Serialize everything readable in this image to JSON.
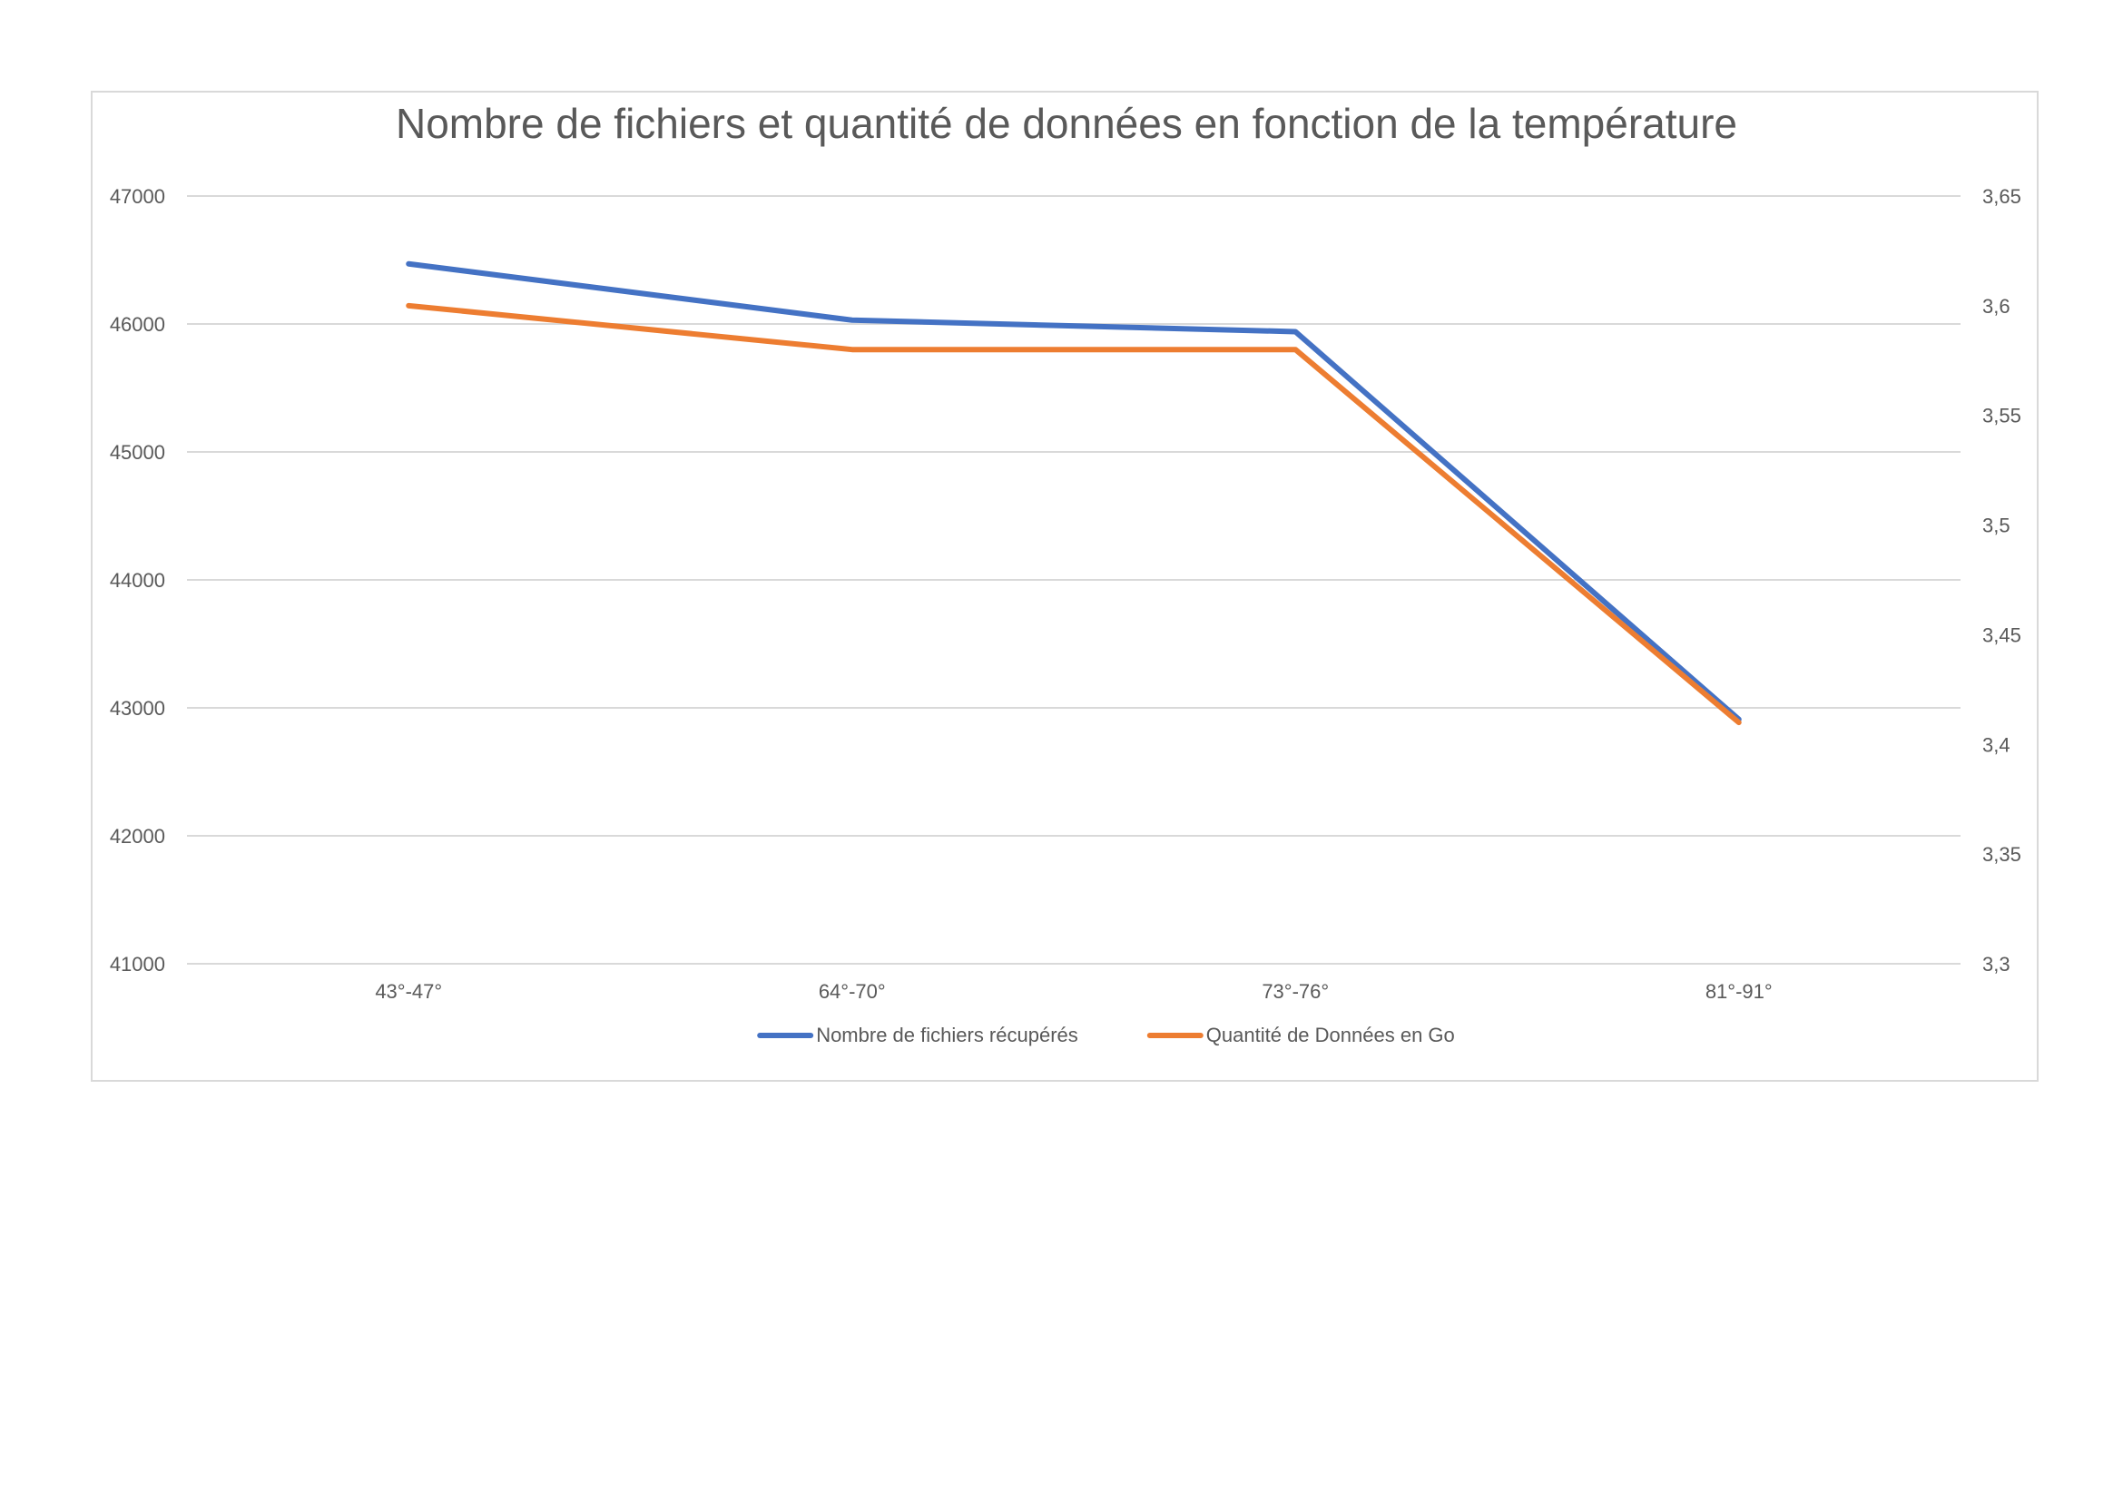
{
  "chart_data": {
    "type": "line",
    "title": "Nombre de fichiers et quantité de données en fonction de la température",
    "categories": [
      "43°-47°",
      "64°-70°",
      "73°-76°",
      "81°-91°"
    ],
    "y_left": {
      "min": 41000,
      "max": 47000,
      "step": 1000,
      "ticks": [
        "47000",
        "46000",
        "45000",
        "44000",
        "43000",
        "42000",
        "41000"
      ]
    },
    "y_right": {
      "min": 3.3,
      "max": 3.65,
      "step": 0.05,
      "ticks": [
        "3,65",
        "3,6",
        "3,55",
        "3,5",
        "3,45",
        "3,4",
        "3,35",
        "3,3"
      ]
    },
    "grid": true,
    "legend_position": "bottom",
    "series": [
      {
        "name": "Nombre de fichiers récupérés",
        "axis": "left",
        "color": "#4472C4",
        "values": [
          46470,
          46030,
          45940,
          42910
        ]
      },
      {
        "name": "Quantité de Données en Go",
        "axis": "right",
        "color": "#ED7D31",
        "values": [
          3.6,
          3.58,
          3.58,
          3.41
        ]
      }
    ]
  }
}
